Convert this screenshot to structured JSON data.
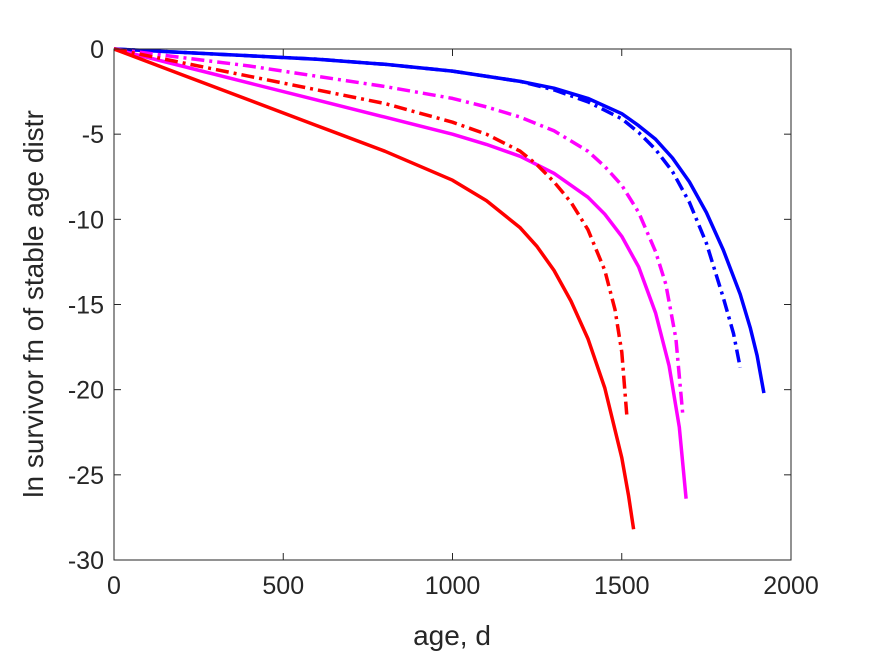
{
  "chart_data": {
    "type": "line",
    "title": "",
    "xlabel": "age, d",
    "ylabel": "ln survivor fn of stable age distr",
    "xlim": [
      0,
      2000
    ],
    "ylim": [
      -30,
      0
    ],
    "xticks": [
      0,
      500,
      1000,
      1500,
      2000
    ],
    "yticks": [
      0,
      -5,
      -10,
      -15,
      -20,
      -25,
      -30
    ],
    "grid": false,
    "legend": "none",
    "series": [
      {
        "color": "#0000ff",
        "style": "solid",
        "x": [
          0,
          200,
          400,
          600,
          800,
          1000,
          1200,
          1300,
          1400,
          1500,
          1550,
          1600,
          1650,
          1700,
          1750,
          1800,
          1850,
          1880,
          1900,
          1920
        ],
        "y": [
          0,
          -0.2,
          -0.4,
          -0.6,
          -0.9,
          -1.3,
          -1.9,
          -2.3,
          -2.9,
          -3.8,
          -4.5,
          -5.3,
          -6.4,
          -7.8,
          -9.6,
          -11.8,
          -14.4,
          -16.4,
          -18.0,
          -20.2
        ]
      },
      {
        "color": "#0000ff",
        "style": "dashdot",
        "x": [
          0,
          200,
          400,
          600,
          800,
          1000,
          1200,
          1300,
          1400,
          1500,
          1550,
          1600,
          1650,
          1700,
          1750,
          1800,
          1830,
          1850
        ],
        "y": [
          0,
          -0.2,
          -0.4,
          -0.6,
          -0.9,
          -1.3,
          -1.9,
          -2.4,
          -3.1,
          -4.1,
          -4.9,
          -5.9,
          -7.2,
          -9.0,
          -11.4,
          -14.6,
          -16.7,
          -18.7
        ]
      },
      {
        "color": "#ff00ff",
        "style": "solid",
        "x": [
          0,
          200,
          400,
          600,
          800,
          1000,
          1100,
          1200,
          1300,
          1400,
          1450,
          1500,
          1550,
          1600,
          1640,
          1670,
          1690
        ],
        "y": [
          0,
          -1.0,
          -2.0,
          -3.0,
          -4.0,
          -5.0,
          -5.6,
          -6.3,
          -7.3,
          -8.7,
          -9.7,
          -11.0,
          -12.8,
          -15.5,
          -18.6,
          -22.2,
          -26.4
        ]
      },
      {
        "color": "#ff00ff",
        "style": "dashdot",
        "x": [
          0,
          200,
          400,
          600,
          800,
          1000,
          1100,
          1200,
          1300,
          1400,
          1450,
          1500,
          1550,
          1600,
          1630,
          1660,
          1680
        ],
        "y": [
          0,
          -0.5,
          -1.0,
          -1.6,
          -2.2,
          -2.9,
          -3.4,
          -4.0,
          -4.8,
          -6.0,
          -6.9,
          -8.0,
          -9.6,
          -11.9,
          -13.8,
          -17.0,
          -21.4
        ]
      },
      {
        "color": "#ff0000",
        "style": "solid",
        "x": [
          0,
          200,
          400,
          600,
          800,
          1000,
          1100,
          1200,
          1250,
          1300,
          1350,
          1400,
          1450,
          1500,
          1520,
          1535
        ],
        "y": [
          0,
          -1.5,
          -3.0,
          -4.5,
          -6.0,
          -7.7,
          -8.9,
          -10.5,
          -11.6,
          -13.0,
          -14.8,
          -17.0,
          -19.9,
          -24.0,
          -26.2,
          -28.2
        ]
      },
      {
        "color": "#ff0000",
        "style": "dashdot",
        "x": [
          0,
          200,
          400,
          600,
          800,
          1000,
          1100,
          1200,
          1250,
          1300,
          1350,
          1400,
          1450,
          1480,
          1500,
          1515
        ],
        "y": [
          0,
          -0.8,
          -1.6,
          -2.4,
          -3.2,
          -4.3,
          -5.0,
          -6.0,
          -6.8,
          -7.8,
          -9.0,
          -10.6,
          -13.0,
          -15.3,
          -17.8,
          -21.5
        ]
      }
    ]
  }
}
